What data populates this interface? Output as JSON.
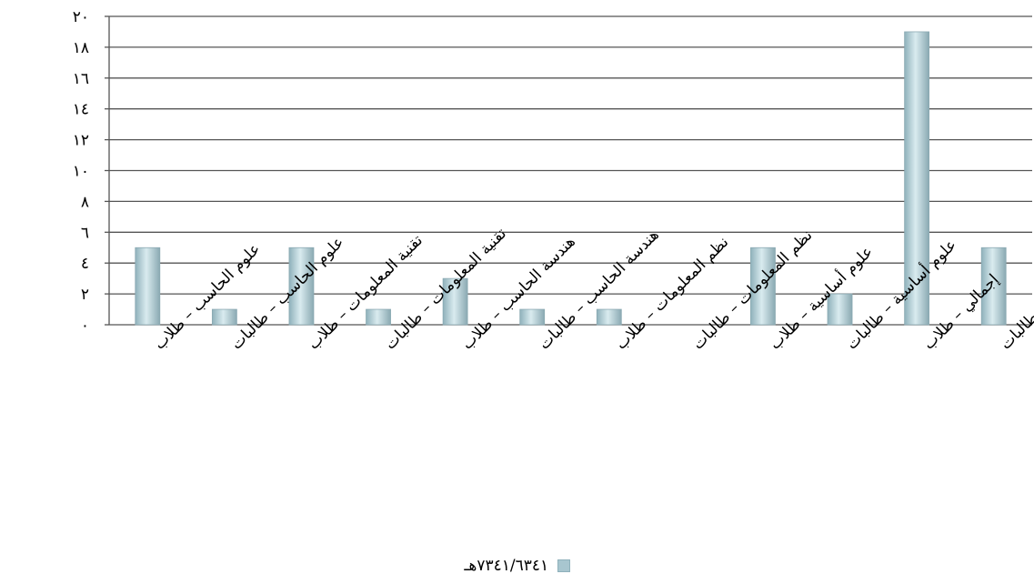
{
  "chart_data": {
    "type": "bar",
    "categories": [
      "علوم الحاسب – طلاب",
      "علوم الحاسب – طالبات",
      "تقنية المعلومات – طلاب",
      "تقنية المعلومات – طالبات",
      "هندسة الحاسب – طلاب",
      "هندسة الحاسب – طالبات",
      "نظم المعلومات – طلاب",
      "نظم المعلومات – طالبات",
      "علوم أساسية – طلاب",
      "علوم أساسية – طالبات",
      "إجمالي – طلاب",
      "إجمالي – طالبات"
    ],
    "series": [
      {
        "name": "١٤٣٦/١٤٣٧هـ",
        "values": [
          5,
          1,
          5,
          1,
          3,
          1,
          1,
          0,
          5,
          2,
          19,
          5
        ]
      }
    ],
    "ylim": [
      0,
      20
    ],
    "yticks": [
      "٠",
      "٢",
      "٤",
      "٦",
      "٨",
      "١٠",
      "١٢",
      "١٤",
      "١٦",
      "١٨",
      "٢٠"
    ],
    "grid": true,
    "legend_position": "bottom",
    "bar_color": "#a8c6cf"
  }
}
